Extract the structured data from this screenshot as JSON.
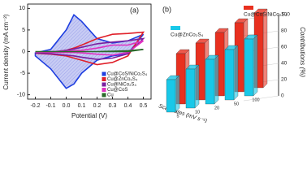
{
  "chart_data": [
    {
      "type": "line",
      "panel_label": "(a)",
      "x_label": "Potential (V)",
      "y_label": "Current density (mA cm⁻²)",
      "x": [
        -0.2,
        -0.1,
        0.0,
        0.05,
        0.1,
        0.2,
        0.3,
        0.4,
        0.5,
        0.4,
        0.3,
        0.2,
        0.1,
        0.05,
        0.0,
        -0.1,
        -0.2
      ],
      "xlim": [
        -0.25,
        0.55
      ],
      "xticks": [
        -0.2,
        -0.1,
        {
          "value": 0,
          "label": "0.0"
        },
        0.1,
        0.2,
        0.3,
        0.4,
        0.5
      ],
      "ylim": [
        -11,
        11
      ],
      "yticks": [
        -10,
        -5,
        0,
        5,
        10
      ],
      "series": [
        {
          "name": "Cu@CoS/NiCo₂S₄",
          "color": "#1f3fe0",
          "fill": true,
          "values": [
            -0.3,
            0.5,
            5,
            8.5,
            7,
            3,
            2,
            2.5,
            4,
            -0.5,
            -1,
            -2,
            -5,
            -7.5,
            -8.5,
            -4,
            -1
          ]
        },
        {
          "name": "Cu@ZnCo₂S₄",
          "color": "#e0202a",
          "values": [
            -0.3,
            -0.2,
            0.3,
            0.8,
            1.5,
            3,
            4,
            4.2,
            4.5,
            -1,
            -2.5,
            -3,
            -2,
            -1.5,
            -1,
            -0.6,
            -0.4
          ]
        },
        {
          "name": "Cu@NiCo₂S₄",
          "color": "#7a1fa0",
          "values": [
            -0.2,
            -0.1,
            0.3,
            0.6,
            1,
            1.8,
            2.2,
            2.5,
            3,
            -0.5,
            -1.5,
            -1.8,
            -1.3,
            -1,
            -0.8,
            -0.5,
            -0.3
          ]
        },
        {
          "name": "Cu@CoS",
          "color": "#e030c0",
          "values": [
            -0.1,
            0,
            0.1,
            0.2,
            0.3,
            0.8,
            1.5,
            1.5,
            2.5,
            -0.2,
            -0.8,
            -0.6,
            -0.3,
            -0.2,
            -0.2,
            -0.2,
            -0.1
          ]
        },
        {
          "name": "Cu",
          "color": "#2a6a2a",
          "values": [
            0,
            0,
            0,
            0,
            0,
            0,
            0.1,
            0.2,
            0.5,
            0,
            0,
            0,
            0,
            0,
            0,
            0,
            0
          ]
        }
      ]
    },
    {
      "type": "bar3d",
      "panel_label": "(b)",
      "x_label": "Scan rates (mV s⁻¹)",
      "y_label": "Contributions (%)",
      "categories": [
        "5",
        "10",
        "20",
        "50",
        "100"
      ],
      "ylim": [
        0,
        100
      ],
      "yticks": [
        0,
        20,
        40,
        60,
        80,
        100
      ],
      "series": [
        {
          "name": "Cu@ZnCo₂S₄",
          "color": "#19c8e8",
          "values": [
            40,
            48,
            55,
            62,
            70
          ]
        },
        {
          "name": "Cu@CoS/NiCo₂S₄",
          "color": "#e8301f",
          "values": [
            62,
            70,
            78,
            85,
            92
          ]
        }
      ]
    }
  ]
}
